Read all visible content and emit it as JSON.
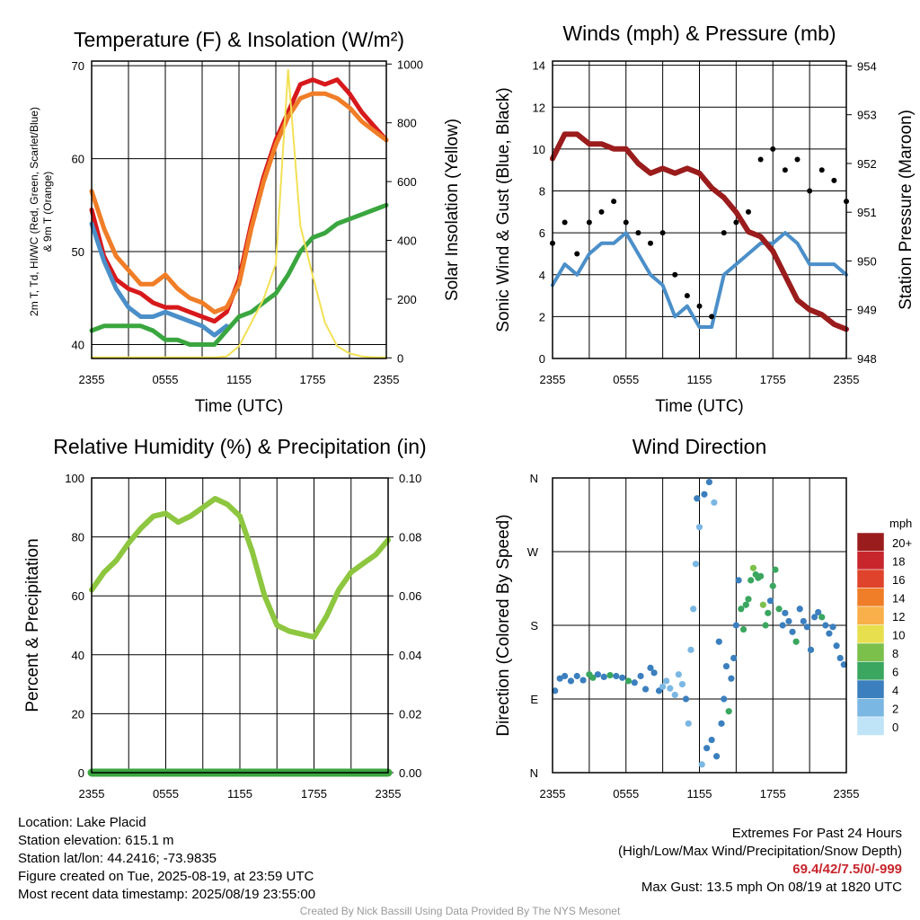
{
  "chart_data": [
    {
      "type": "line",
      "title": "Temperature (F) & Insolation (W/m²)",
      "xlabel": "Time (UTC)",
      "ylabel": "2m T, Td, HI/WC (Red, Green, Scarlet/Blue) & 9m T (Orange)",
      "ylabel_line1": "2m T, Td, HI/WC (Red, Green, Scarlet/Blue)",
      "ylabel_line2": "& 9m T (Orange)",
      "y2label": "Solar Insolation (Yellow)",
      "ylim": [
        38.5,
        70.5
      ],
      "y2lim": [
        -2,
        1010
      ],
      "x_ticks": [
        "2355",
        "0555",
        "1155",
        "1755",
        "2355"
      ],
      "y_ticks": [
        40,
        50,
        60,
        70
      ],
      "y2_ticks": [
        0,
        200,
        400,
        600,
        800,
        1000
      ],
      "grid": true,
      "x_hours": [
        0,
        1,
        2,
        3,
        4,
        5,
        6,
        7,
        8,
        9,
        10,
        11,
        12,
        13,
        14,
        15,
        16,
        17,
        18,
        19,
        20,
        21,
        22,
        23,
        24
      ],
      "series": [
        {
          "name": "2m T",
          "color": "#d7191c",
          "axis": "left",
          "values": [
            54.5,
            49.5,
            47.0,
            46.0,
            45.5,
            44.5,
            44.0,
            44.0,
            43.5,
            43.0,
            42.5,
            43.5,
            47.0,
            53.0,
            58.0,
            62.0,
            65.0,
            68.0,
            68.5,
            68.0,
            68.5,
            67.0,
            65.0,
            63.5,
            62.0
          ]
        },
        {
          "name": "9m T",
          "color": "#f07d27",
          "axis": "left",
          "values": [
            56.5,
            52.5,
            49.5,
            48.0,
            46.5,
            46.5,
            47.5,
            46.0,
            45.0,
            44.5,
            43.5,
            44.0,
            46.5,
            52.5,
            57.5,
            61.5,
            64.5,
            66.5,
            67.0,
            67.0,
            66.5,
            65.5,
            64.0,
            63.0,
            62.0
          ]
        },
        {
          "name": "HI/WC",
          "color": "#4b8fc9",
          "axis": "left",
          "values": [
            53.0,
            49.0,
            46.0,
            44.0,
            43.0,
            43.0,
            43.5,
            43.0,
            42.5,
            42.0,
            41.0,
            42.0,
            null,
            null,
            null,
            null,
            null,
            null,
            null,
            null,
            null,
            null,
            null,
            null,
            null
          ]
        },
        {
          "name": "2m Td",
          "color": "#3aa63f",
          "axis": "left",
          "values": [
            41.5,
            42.0,
            42.0,
            42.0,
            42.0,
            41.5,
            40.5,
            40.5,
            40.0,
            40.0,
            40.0,
            41.5,
            43.0,
            43.5,
            44.5,
            45.5,
            47.5,
            50.0,
            51.5,
            52.0,
            53.0,
            53.5,
            54.0,
            54.5,
            55.0
          ]
        },
        {
          "name": "Solar Insolation",
          "color": "#f2e055",
          "axis": "right",
          "values": [
            2,
            2,
            2,
            2,
            2,
            2,
            2,
            2,
            2,
            2,
            2,
            5,
            40,
            120,
            200,
            320,
            980,
            450,
            280,
            120,
            40,
            15,
            5,
            2,
            2
          ]
        }
      ]
    },
    {
      "type": "line",
      "title": "Winds (mph) & Pressure (mb)",
      "xlabel": "Time (UTC)",
      "ylabel": "Sonic Wind & Gust (Blue, Black)",
      "y2label": "Station Pressure (Maroon)",
      "ylim": [
        0,
        14.2
      ],
      "y2lim": [
        948,
        954.1
      ],
      "x_ticks": [
        "2355",
        "0555",
        "1155",
        "1755",
        "2355"
      ],
      "y_ticks": [
        0,
        2,
        4,
        6,
        8,
        10,
        12,
        14
      ],
      "y2_ticks": [
        948,
        949,
        950,
        951,
        952,
        953,
        954
      ],
      "grid": true,
      "x_hours": [
        0,
        1,
        2,
        3,
        4,
        5,
        6,
        7,
        8,
        9,
        10,
        11,
        12,
        13,
        14,
        15,
        16,
        17,
        18,
        19,
        20,
        21,
        22,
        23,
        24
      ],
      "series": [
        {
          "name": "Sonic Wind",
          "color": "#4b8fc9",
          "axis": "left",
          "values": [
            3.5,
            4.5,
            4.0,
            5.0,
            5.5,
            5.5,
            6.0,
            5.0,
            4.0,
            3.5,
            2.0,
            2.5,
            1.5,
            1.5,
            4.0,
            4.5,
            5.0,
            5.5,
            5.5,
            6.0,
            5.5,
            4.5,
            4.5,
            4.5,
            4.0
          ]
        },
        {
          "name": "Station Pressure",
          "color": "#9b1c1c",
          "axis": "right",
          "values": [
            952.1,
            952.6,
            952.6,
            952.4,
            952.4,
            952.3,
            952.3,
            952.0,
            951.8,
            951.9,
            951.8,
            951.9,
            951.8,
            951.5,
            951.3,
            951.0,
            950.6,
            950.5,
            950.2,
            949.7,
            949.2,
            949.0,
            948.9,
            948.7,
            948.6
          ]
        },
        {
          "name": "Gust",
          "color": "#000000",
          "axis": "left",
          "style": "points",
          "values": [
            5.5,
            6.5,
            5.0,
            6.5,
            7.0,
            7.5,
            6.5,
            6.0,
            5.5,
            6.0,
            4.0,
            3.0,
            2.5,
            2.0,
            6.0,
            6.5,
            7.0,
            9.5,
            10.0,
            9.0,
            9.5,
            8.0,
            9.0,
            8.5,
            7.5
          ]
        }
      ]
    },
    {
      "type": "line",
      "title": "Relative Humidity (%) & Precipitation (in)",
      "xlabel": "",
      "ylabel": "Percent & Precipitation",
      "ylim": [
        0,
        100
      ],
      "y2lim": [
        0,
        0.1
      ],
      "x_ticks": [
        "2355",
        "0555",
        "1155",
        "1755",
        "2355"
      ],
      "y_ticks": [
        0,
        20,
        40,
        60,
        80,
        100
      ],
      "y2_ticks": [
        "0.00",
        "0.02",
        "0.04",
        "0.06",
        "0.08",
        "0.10"
      ],
      "grid": true,
      "x_hours": [
        0,
        1,
        2,
        3,
        4,
        5,
        6,
        7,
        8,
        9,
        10,
        11,
        12,
        13,
        14,
        15,
        16,
        17,
        18,
        19,
        20,
        21,
        22,
        23,
        24
      ],
      "series": [
        {
          "name": "Relative Humidity",
          "color": "#8dc63f",
          "axis": "left",
          "values": [
            62,
            68,
            72,
            78,
            83,
            87,
            88,
            85,
            87,
            90,
            93,
            91,
            87,
            75,
            60,
            50,
            48,
            47,
            46,
            53,
            62,
            68,
            71,
            74,
            79
          ]
        },
        {
          "name": "Precipitation",
          "color": "#3aa63f",
          "axis": "right",
          "values": [
            0,
            0,
            0,
            0,
            0,
            0,
            0,
            0,
            0,
            0,
            0,
            0,
            0,
            0,
            0,
            0,
            0,
            0,
            0,
            0,
            0,
            0,
            0,
            0,
            0
          ]
        }
      ]
    },
    {
      "type": "scatter",
      "title": "Wind Direction",
      "ylabel": "Direction (Colored By Speed)",
      "x_ticks": [
        "2355",
        "0555",
        "1155",
        "1755",
        "2355"
      ],
      "y_ticks": [
        "N",
        "E",
        "S",
        "W",
        "N"
      ],
      "ylim": [
        0,
        360
      ],
      "grid": true,
      "colorbar": {
        "title": "mph",
        "labels": [
          "20+",
          "18",
          "16",
          "14",
          "12",
          "10",
          "8",
          "6",
          "4",
          "2",
          "0"
        ],
        "colors": [
          "#9b1c1c",
          "#c8262d",
          "#e0432b",
          "#f07d27",
          "#f9b04a",
          "#e8df4e",
          "#7cc04c",
          "#3aa65f",
          "#3b7fbe",
          "#7bb7e3",
          "#bfe3f7"
        ]
      },
      "points": [
        {
          "x": 0.2,
          "y": 100,
          "speed": 4
        },
        {
          "x": 0.6,
          "y": 115,
          "speed": 4
        },
        {
          "x": 1.0,
          "y": 118,
          "speed": 4
        },
        {
          "x": 1.5,
          "y": 112,
          "speed": 4
        },
        {
          "x": 2.0,
          "y": 118,
          "speed": 4
        },
        {
          "x": 2.5,
          "y": 113,
          "speed": 4
        },
        {
          "x": 3.0,
          "y": 120,
          "speed": 5
        },
        {
          "x": 3.3,
          "y": 116,
          "speed": 6
        },
        {
          "x": 3.7,
          "y": 120,
          "speed": 4
        },
        {
          "x": 4.2,
          "y": 117,
          "speed": 4
        },
        {
          "x": 4.7,
          "y": 119,
          "speed": 5
        },
        {
          "x": 5.2,
          "y": 118,
          "speed": 4
        },
        {
          "x": 5.7,
          "y": 116,
          "speed": 4
        },
        {
          "x": 6.2,
          "y": 112,
          "speed": 6
        },
        {
          "x": 6.7,
          "y": 110,
          "speed": 3
        },
        {
          "x": 7.2,
          "y": 118,
          "speed": 4
        },
        {
          "x": 7.6,
          "y": 102,
          "speed": 4
        },
        {
          "x": 8.0,
          "y": 128,
          "speed": 4
        },
        {
          "x": 8.3,
          "y": 122,
          "speed": 4
        },
        {
          "x": 8.7,
          "y": 100,
          "speed": 3
        },
        {
          "x": 9.0,
          "y": 105,
          "speed": 2
        },
        {
          "x": 9.3,
          "y": 112,
          "speed": 2
        },
        {
          "x": 9.6,
          "y": 103,
          "speed": 2
        },
        {
          "x": 10.0,
          "y": 95,
          "speed": 1
        },
        {
          "x": 10.3,
          "y": 120,
          "speed": 2
        },
        {
          "x": 10.6,
          "y": 108,
          "speed": 2
        },
        {
          "x": 10.9,
          "y": 90,
          "speed": 3
        },
        {
          "x": 11.1,
          "y": 60,
          "speed": 2
        },
        {
          "x": 11.3,
          "y": 150,
          "speed": 2
        },
        {
          "x": 11.5,
          "y": 200,
          "speed": 2
        },
        {
          "x": 11.7,
          "y": 255,
          "speed": 2
        },
        {
          "x": 11.8,
          "y": 335,
          "speed": 3
        },
        {
          "x": 12.0,
          "y": 300,
          "speed": 2
        },
        {
          "x": 12.2,
          "y": 10,
          "speed": 2
        },
        {
          "x": 12.4,
          "y": 340,
          "speed": 4
        },
        {
          "x": 12.6,
          "y": 30,
          "speed": 3
        },
        {
          "x": 12.8,
          "y": 355,
          "speed": 4
        },
        {
          "x": 13.0,
          "y": 40,
          "speed": 3
        },
        {
          "x": 13.2,
          "y": 330,
          "speed": 2
        },
        {
          "x": 13.4,
          "y": 20,
          "speed": 4
        },
        {
          "x": 13.6,
          "y": 160,
          "speed": 3
        },
        {
          "x": 13.8,
          "y": 60,
          "speed": 4
        },
        {
          "x": 14.0,
          "y": 90,
          "speed": 4
        },
        {
          "x": 14.2,
          "y": 130,
          "speed": 4
        },
        {
          "x": 14.4,
          "y": 75,
          "speed": 5
        },
        {
          "x": 14.6,
          "y": 115,
          "speed": 4
        },
        {
          "x": 14.8,
          "y": 140,
          "speed": 4
        },
        {
          "x": 15.0,
          "y": 180,
          "speed": 4
        },
        {
          "x": 15.2,
          "y": 235,
          "speed": 3
        },
        {
          "x": 15.4,
          "y": 200,
          "speed": 5
        },
        {
          "x": 15.6,
          "y": 175,
          "speed": 5
        },
        {
          "x": 15.8,
          "y": 205,
          "speed": 6
        },
        {
          "x": 16.0,
          "y": 212,
          "speed": 5
        },
        {
          "x": 16.2,
          "y": 235,
          "speed": 6
        },
        {
          "x": 16.4,
          "y": 250,
          "speed": 7
        },
        {
          "x": 16.6,
          "y": 242,
          "speed": 6
        },
        {
          "x": 16.8,
          "y": 238,
          "speed": 5
        },
        {
          "x": 17.0,
          "y": 240,
          "speed": 6
        },
        {
          "x": 17.2,
          "y": 205,
          "speed": 7
        },
        {
          "x": 17.4,
          "y": 180,
          "speed": 6
        },
        {
          "x": 17.6,
          "y": 195,
          "speed": 5
        },
        {
          "x": 17.8,
          "y": 210,
          "speed": 4
        },
        {
          "x": 18.0,
          "y": 228,
          "speed": 6
        },
        {
          "x": 18.2,
          "y": 248,
          "speed": 5
        },
        {
          "x": 18.5,
          "y": 200,
          "speed": 5
        },
        {
          "x": 18.8,
          "y": 180,
          "speed": 4
        },
        {
          "x": 19.0,
          "y": 195,
          "speed": 4
        },
        {
          "x": 19.3,
          "y": 185,
          "speed": 4
        },
        {
          "x": 19.6,
          "y": 172,
          "speed": 4
        },
        {
          "x": 19.9,
          "y": 160,
          "speed": 5
        },
        {
          "x": 20.2,
          "y": 200,
          "speed": 4
        },
        {
          "x": 20.5,
          "y": 185,
          "speed": 4
        },
        {
          "x": 20.8,
          "y": 178,
          "speed": 4
        },
        {
          "x": 21.1,
          "y": 150,
          "speed": 4
        },
        {
          "x": 21.4,
          "y": 190,
          "speed": 4
        },
        {
          "x": 21.7,
          "y": 196,
          "speed": 4
        },
        {
          "x": 22.0,
          "y": 190,
          "speed": 5
        },
        {
          "x": 22.3,
          "y": 180,
          "speed": 4
        },
        {
          "x": 22.6,
          "y": 170,
          "speed": 4
        },
        {
          "x": 22.9,
          "y": 178,
          "speed": 4
        },
        {
          "x": 23.2,
          "y": 155,
          "speed": 4
        },
        {
          "x": 23.5,
          "y": 140,
          "speed": 4
        },
        {
          "x": 23.8,
          "y": 132,
          "speed": 4
        }
      ]
    }
  ],
  "footer": {
    "location": "Location: Lake Placid",
    "elevation": "Station elevation: 615.1 m",
    "latlon": "Station lat/lon: 44.2416; -73.9835",
    "created": "Figure created on Tue, 2025-08-19, at 23:59 UTC",
    "recent": "Most recent data timestamp: 2025/08/19 23:55:00",
    "extremes_title": "Extremes For Past 24 Hours",
    "extremes_legend": "(High/Low/Max Wind/Precipitation/Snow Depth)",
    "extremes_values": "69.4/42/7.5/0/-999",
    "max_gust": "Max Gust: 13.5 mph On 08/19 at 1820 UTC",
    "credit": "Created By Nick Bassill Using Data Provided By The NYS Mesonet"
  }
}
